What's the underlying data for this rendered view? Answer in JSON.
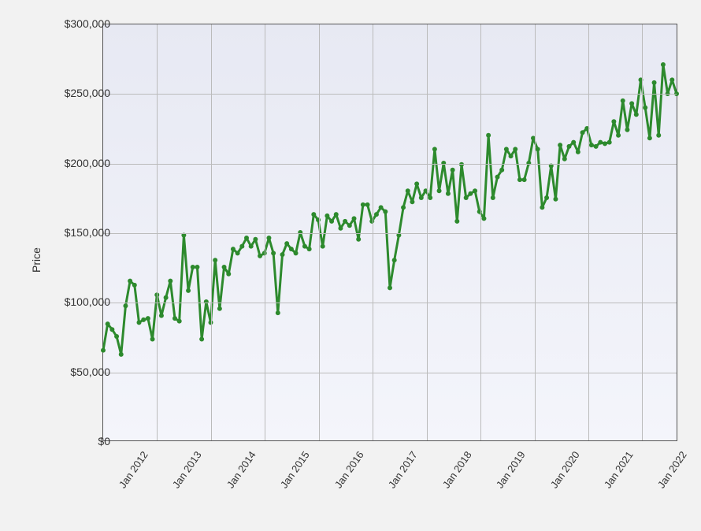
{
  "chart": {
    "type": "line",
    "y_axis_title": "Price",
    "background_gradient_top": "#e7e9f3",
    "background_gradient_bottom": "#f4f5fb",
    "page_background": "#f2f2f2",
    "border_color": "#555555",
    "grid_color": "#bbbbbb",
    "line_color": "#2d8a2d",
    "marker_color": "#2d8a2d",
    "line_width": 3,
    "marker_radius": 3,
    "label_color": "#333333",
    "label_fontsize": 14,
    "ylim": [
      0,
      300000
    ],
    "ytick_step": 50000,
    "y_ticks": [
      {
        "value": 0,
        "label": "$0"
      },
      {
        "value": 50000,
        "label": "$50,000"
      },
      {
        "value": 100000,
        "label": "$100,000"
      },
      {
        "value": 150000,
        "label": "$150,000"
      },
      {
        "value": 200000,
        "label": "$200,000"
      },
      {
        "value": 250000,
        "label": "$250,000"
      },
      {
        "value": 300000,
        "label": "$300,000"
      }
    ],
    "x_ticks": [
      {
        "index": 0,
        "label": "Jan 2012"
      },
      {
        "index": 12,
        "label": "Jan 2013"
      },
      {
        "index": 24,
        "label": "Jan 2014"
      },
      {
        "index": 36,
        "label": "Jan 2015"
      },
      {
        "index": 48,
        "label": "Jan 2016"
      },
      {
        "index": 60,
        "label": "Jan 2017"
      },
      {
        "index": 72,
        "label": "Jan 2018"
      },
      {
        "index": 84,
        "label": "Jan 2019"
      },
      {
        "index": 96,
        "label": "Jan 2020"
      },
      {
        "index": 108,
        "label": "Jan 2021"
      },
      {
        "index": 120,
        "label": "Jan 2022"
      }
    ],
    "x_count": 129,
    "values": [
      65000,
      84000,
      80000,
      75000,
      62000,
      97000,
      115000,
      112000,
      85000,
      87000,
      88000,
      73000,
      105000,
      90000,
      103000,
      115000,
      88000,
      86000,
      148000,
      108000,
      125000,
      125000,
      73000,
      100000,
      85000,
      130000,
      95000,
      125000,
      120000,
      138000,
      135000,
      140000,
      146000,
      140000,
      145000,
      133000,
      135000,
      146000,
      135000,
      92000,
      134000,
      142000,
      138000,
      135000,
      150000,
      140000,
      138000,
      163000,
      159000,
      140000,
      162000,
      158000,
      163000,
      153000,
      158000,
      155000,
      160000,
      145000,
      170000,
      170000,
      158000,
      163000,
      168000,
      165000,
      110000,
      130000,
      148000,
      168000,
      180000,
      172000,
      185000,
      175000,
      180000,
      175000,
      210000,
      180000,
      200000,
      178000,
      195000,
      158000,
      199000,
      175000,
      178000,
      180000,
      165000,
      160000,
      220000,
      175000,
      190000,
      195000,
      210000,
      205000,
      210000,
      188000,
      188000,
      200000,
      218000,
      210000,
      168000,
      175000,
      198000,
      174000,
      213000,
      203000,
      212000,
      215000,
      208000,
      222000,
      225000,
      213000,
      212000,
      215000,
      214000,
      215000,
      230000,
      220000,
      245000,
      224000,
      243000,
      235000,
      260000,
      240000,
      218000,
      258000,
      220000,
      271000,
      250000,
      260000,
      250000
    ]
  }
}
